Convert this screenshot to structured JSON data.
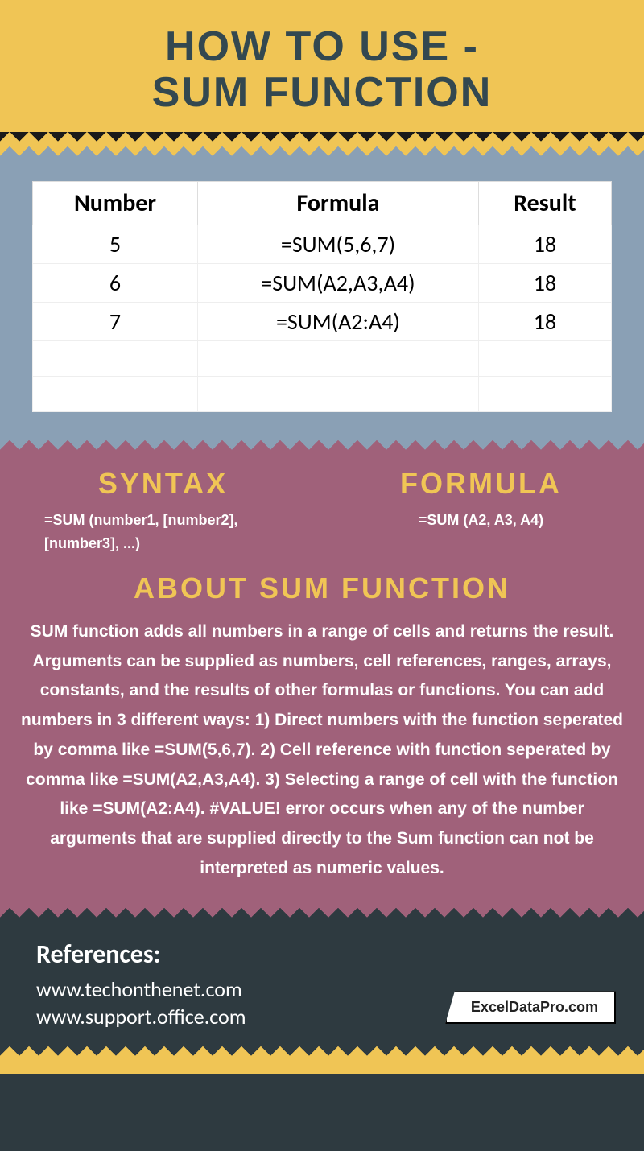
{
  "header": {
    "line1": "HOW TO USE -",
    "line2": "SUM FUNCTION"
  },
  "table": {
    "columns": [
      "Number",
      "Formula",
      "Result"
    ],
    "rows": [
      [
        "5",
        "=SUM(5,6,7)",
        "18"
      ],
      [
        "6",
        "=SUM(A2,A3,A4)",
        "18"
      ],
      [
        "7",
        "=SUM(A2:A4)",
        "18"
      ],
      [
        "",
        "",
        ""
      ],
      [
        "",
        "",
        ""
      ]
    ]
  },
  "syntax": {
    "title": "SYNTAX",
    "text": "=SUM (number1, [number2], [number3], ...)"
  },
  "formula": {
    "title": "FORMULA",
    "text": "=SUM (A2, A3, A4)"
  },
  "about": {
    "title": "ABOUT SUM FUNCTION",
    "text": "SUM function adds all numbers in a range of cells and returns the result. Arguments can be supplied as numbers, cell references, ranges, arrays, constants, and the results of other formulas or functions. You can add numbers in 3 different ways: 1) Direct numbers with the function seperated by comma like =SUM(5,6,7). 2) Cell reference with function seperated by comma like =SUM(A2,A3,A4). 3) Selecting a range of cell with the function like =SUM(A2:A4). #VALUE! error occurs when any of the number arguments that are supplied directly to the Sum function can not be interpreted as numeric values."
  },
  "footer": {
    "refs_title": "References:",
    "ref1": "www.techonthenet.com",
    "ref2": "www.support.office.com",
    "badge": "ExcelDataPro.com"
  },
  "colors": {
    "yellow": "#f0c555",
    "dark": "#2e3a40",
    "blue": "#8aa0b5",
    "mauve": "#a0617a"
  }
}
